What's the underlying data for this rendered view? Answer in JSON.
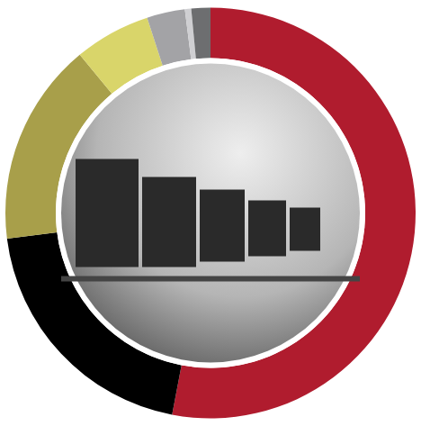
{
  "chart_data": {
    "type": "donut",
    "values": [
      53,
      20,
      16,
      6,
      3,
      0.5,
      1.5
    ],
    "colors": [
      "#b01c2e",
      "#000000",
      "#a89f4a",
      "#d9d56a",
      "#a3a3a6",
      "#cfcfd2",
      "#6d6e70"
    ],
    "data_labels": false
  }
}
